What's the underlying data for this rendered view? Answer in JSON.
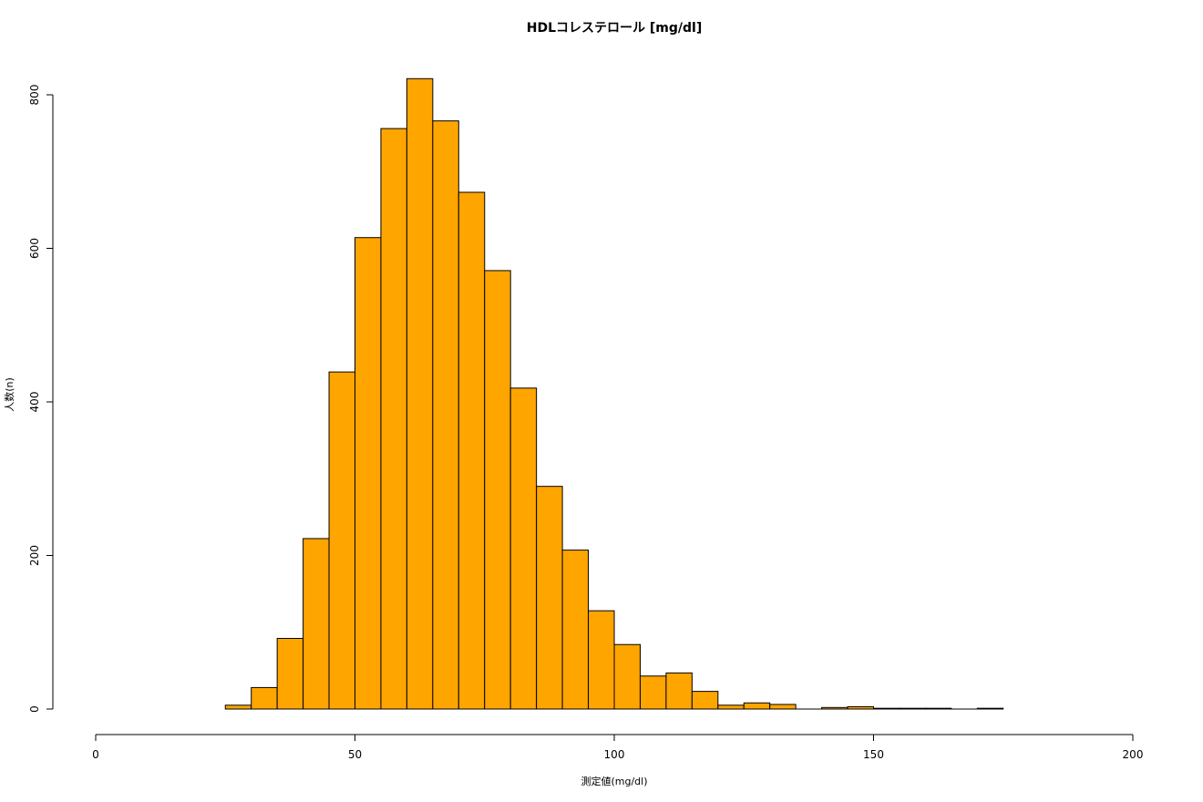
{
  "chart_data": {
    "type": "bar",
    "title": "HDLコレステロール [mg/dl]",
    "xlabel": "測定値(mg/dl)",
    "ylabel": "人数(n)",
    "xlim": [
      0,
      200
    ],
    "ylim": [
      0,
      800
    ],
    "xticks": [
      0,
      50,
      100,
      150,
      200
    ],
    "yticks": [
      0,
      200,
      400,
      600,
      800
    ],
    "bar_color": "#FFA500",
    "bar_edge_color": "#000000",
    "grid": false,
    "bins": [
      {
        "x0": 25,
        "x1": 30,
        "count": 5
      },
      {
        "x0": 30,
        "x1": 35,
        "count": 28
      },
      {
        "x0": 35,
        "x1": 40,
        "count": 92
      },
      {
        "x0": 40,
        "x1": 45,
        "count": 222
      },
      {
        "x0": 45,
        "x1": 50,
        "count": 439
      },
      {
        "x0": 50,
        "x1": 55,
        "count": 614
      },
      {
        "x0": 55,
        "x1": 60,
        "count": 756
      },
      {
        "x0": 60,
        "x1": 65,
        "count": 821
      },
      {
        "x0": 65,
        "x1": 70,
        "count": 766
      },
      {
        "x0": 70,
        "x1": 75,
        "count": 673
      },
      {
        "x0": 75,
        "x1": 80,
        "count": 571
      },
      {
        "x0": 80,
        "x1": 85,
        "count": 418
      },
      {
        "x0": 85,
        "x1": 90,
        "count": 290
      },
      {
        "x0": 90,
        "x1": 95,
        "count": 207
      },
      {
        "x0": 95,
        "x1": 100,
        "count": 128
      },
      {
        "x0": 100,
        "x1": 105,
        "count": 84
      },
      {
        "x0": 105,
        "x1": 110,
        "count": 43
      },
      {
        "x0": 110,
        "x1": 115,
        "count": 47
      },
      {
        "x0": 115,
        "x1": 120,
        "count": 23
      },
      {
        "x0": 120,
        "x1": 125,
        "count": 5
      },
      {
        "x0": 125,
        "x1": 130,
        "count": 8
      },
      {
        "x0": 130,
        "x1": 135,
        "count": 6
      },
      {
        "x0": 135,
        "x1": 140,
        "count": 0
      },
      {
        "x0": 140,
        "x1": 145,
        "count": 2
      },
      {
        "x0": 145,
        "x1": 150,
        "count": 3
      },
      {
        "x0": 150,
        "x1": 155,
        "count": 1
      },
      {
        "x0": 155,
        "x1": 160,
        "count": 1
      },
      {
        "x0": 160,
        "x1": 165,
        "count": 1
      },
      {
        "x0": 165,
        "x1": 170,
        "count": 0
      },
      {
        "x0": 170,
        "x1": 175,
        "count": 1
      }
    ]
  }
}
